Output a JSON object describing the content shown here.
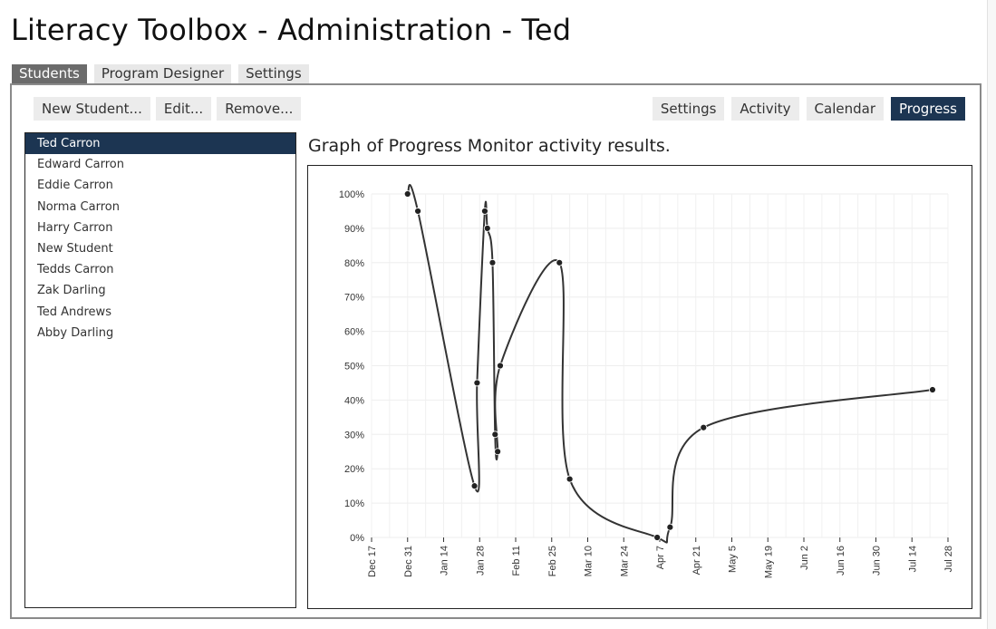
{
  "app": {
    "title": "Literacy Toolbox - Administration - Ted"
  },
  "top_tabs": [
    {
      "label": "Students",
      "active": true
    },
    {
      "label": "Program Designer",
      "active": false
    },
    {
      "label": "Settings",
      "active": false
    }
  ],
  "toolbar": {
    "new_label": "New Student...",
    "edit_label": "Edit...",
    "remove_label": "Remove..."
  },
  "view_tabs": [
    {
      "label": "Settings",
      "active": false
    },
    {
      "label": "Activity",
      "active": false
    },
    {
      "label": "Calendar",
      "active": false
    },
    {
      "label": "Progress",
      "active": true
    }
  ],
  "students": [
    {
      "name": "Ted Carron",
      "selected": true
    },
    {
      "name": "Edward Carron",
      "selected": false
    },
    {
      "name": "Eddie Carron",
      "selected": false
    },
    {
      "name": "Norma Carron",
      "selected": false
    },
    {
      "name": "Harry Carron",
      "selected": false
    },
    {
      "name": "New Student",
      "selected": false
    },
    {
      "name": "Tedds Carron",
      "selected": false
    },
    {
      "name": "Zak Darling",
      "selected": false
    },
    {
      "name": "Ted Andrews",
      "selected": false
    },
    {
      "name": "Abby Darling",
      "selected": false
    }
  ],
  "graph": {
    "caption": "Graph of Progress Monitor activity results."
  },
  "colors": {
    "accent": "#1c3552",
    "active_tab": "#6b6b6b",
    "line": "#333333",
    "grid": "#eeeeee"
  },
  "chart_data": {
    "type": "line",
    "title": "",
    "xlabel": "",
    "ylabel": "",
    "x_ticks": [
      "Dec 17",
      "Dec 31",
      "Jan 14",
      "Jan 28",
      "Feb 11",
      "Feb 25",
      "Mar 10",
      "Mar 24",
      "Apr 7",
      "Apr 21",
      "May 5",
      "May 19",
      "Jun 2",
      "Jun 16",
      "Jun 30",
      "Jul 14",
      "Jul 28"
    ],
    "y_ticks": [
      "0%",
      "10%",
      "20%",
      "30%",
      "40%",
      "50%",
      "60%",
      "70%",
      "80%",
      "90%",
      "100%"
    ],
    "ylim": [
      0,
      100
    ],
    "xlim_days_from_dec17": [
      0,
      224
    ],
    "points": [
      {
        "x": "Dec 30",
        "y": 100
      },
      {
        "x": "Jan 3",
        "y": 95
      },
      {
        "x": "Jan 25",
        "y": 15
      },
      {
        "x": "Jan 26",
        "y": 45
      },
      {
        "x": "Jan 29",
        "y": 95
      },
      {
        "x": "Jan 30",
        "y": 90
      },
      {
        "x": "Feb 1",
        "y": 80
      },
      {
        "x": "Feb 2",
        "y": 30
      },
      {
        "x": "Feb 3",
        "y": 25
      },
      {
        "x": "Feb 4",
        "y": 50
      },
      {
        "x": "Feb 27",
        "y": 80
      },
      {
        "x": "Mar 3",
        "y": 17
      },
      {
        "x": "Apr 6",
        "y": 0
      },
      {
        "x": "Apr 11",
        "y": 3
      },
      {
        "x": "Apr 24",
        "y": 32
      },
      {
        "x": "Jul 22",
        "y": 43
      }
    ]
  }
}
